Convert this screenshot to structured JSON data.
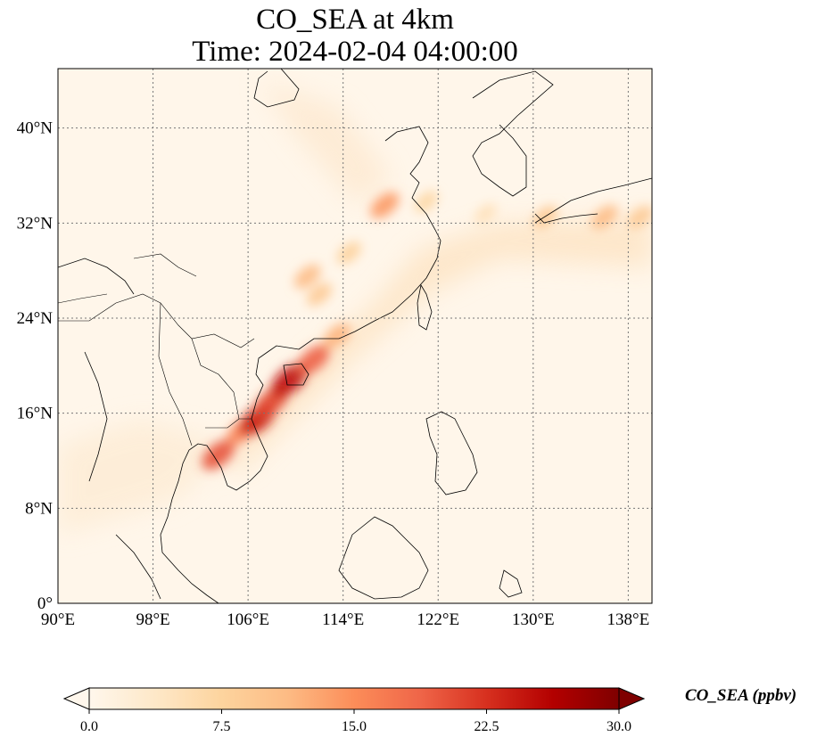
{
  "title": {
    "line1": "CO_SEA at 4km",
    "line2": "Time: 2024-02-04 04:00:00"
  },
  "map": {
    "variable": "CO_SEA",
    "units": "ppbv",
    "level": "4km",
    "time": "2024-02-04 04:00:00",
    "lon_range": [
      90,
      140
    ],
    "lat_range": [
      0,
      45
    ],
    "lon_ticks": [
      {
        "value": 90,
        "label": "90°E"
      },
      {
        "value": 98,
        "label": "98°E"
      },
      {
        "value": 106,
        "label": "106°E"
      },
      {
        "value": 114,
        "label": "114°E"
      },
      {
        "value": 122,
        "label": "122°E"
      },
      {
        "value": 130,
        "label": "130°E"
      },
      {
        "value": 138,
        "label": "138°E"
      }
    ],
    "lat_ticks": [
      {
        "value": 0,
        "label": "0°"
      },
      {
        "value": 8,
        "label": "8°N"
      },
      {
        "value": 16,
        "label": "16°N"
      },
      {
        "value": 24,
        "label": "24°N"
      },
      {
        "value": 32,
        "label": "32°N"
      },
      {
        "value": 40,
        "label": "40°N"
      }
    ],
    "gridlines": true,
    "colormap": "OrRd"
  },
  "colorbar": {
    "label": "CO_SEA (ppbv)",
    "min": 0.0,
    "max": 30.0,
    "extend": "both",
    "ticks": [
      {
        "value": 0.0,
        "label": "0.0"
      },
      {
        "value": 7.5,
        "label": "7.5"
      },
      {
        "value": 15.0,
        "label": "15.0"
      },
      {
        "value": 22.5,
        "label": "22.5"
      },
      {
        "value": 30.0,
        "label": "30.0"
      }
    ],
    "colors": [
      "#fff7ec",
      "#fee8c8",
      "#fdd49e",
      "#fdbb84",
      "#fc8d59",
      "#ef6548",
      "#d7301f",
      "#b30000",
      "#7f0000"
    ]
  },
  "plume": [
    {
      "lon": 103.5,
      "lat": 12.5,
      "value": 20
    },
    {
      "lon": 105.5,
      "lat": 14.5,
      "value": 16
    },
    {
      "lon": 106.8,
      "lat": 15.5,
      "value": 24
    },
    {
      "lon": 108.0,
      "lat": 17.0,
      "value": 21
    },
    {
      "lon": 109.5,
      "lat": 18.8,
      "value": 25
    },
    {
      "lon": 111.5,
      "lat": 20.5,
      "value": 19
    },
    {
      "lon": 113.5,
      "lat": 22.5,
      "value": 12
    },
    {
      "lon": 112.0,
      "lat": 26.0,
      "value": 9
    },
    {
      "lon": 111.0,
      "lat": 27.5,
      "value": 11
    },
    {
      "lon": 114.5,
      "lat": 29.5,
      "value": 8
    },
    {
      "lon": 117.5,
      "lat": 33.5,
      "value": 14
    },
    {
      "lon": 121.0,
      "lat": 33.8,
      "value": 7
    },
    {
      "lon": 126.0,
      "lat": 32.8,
      "value": 5
    },
    {
      "lon": 131.0,
      "lat": 32.5,
      "value": 9
    },
    {
      "lon": 136.0,
      "lat": 32.5,
      "value": 11
    },
    {
      "lon": 139.0,
      "lat": 32.5,
      "value": 9
    }
  ]
}
